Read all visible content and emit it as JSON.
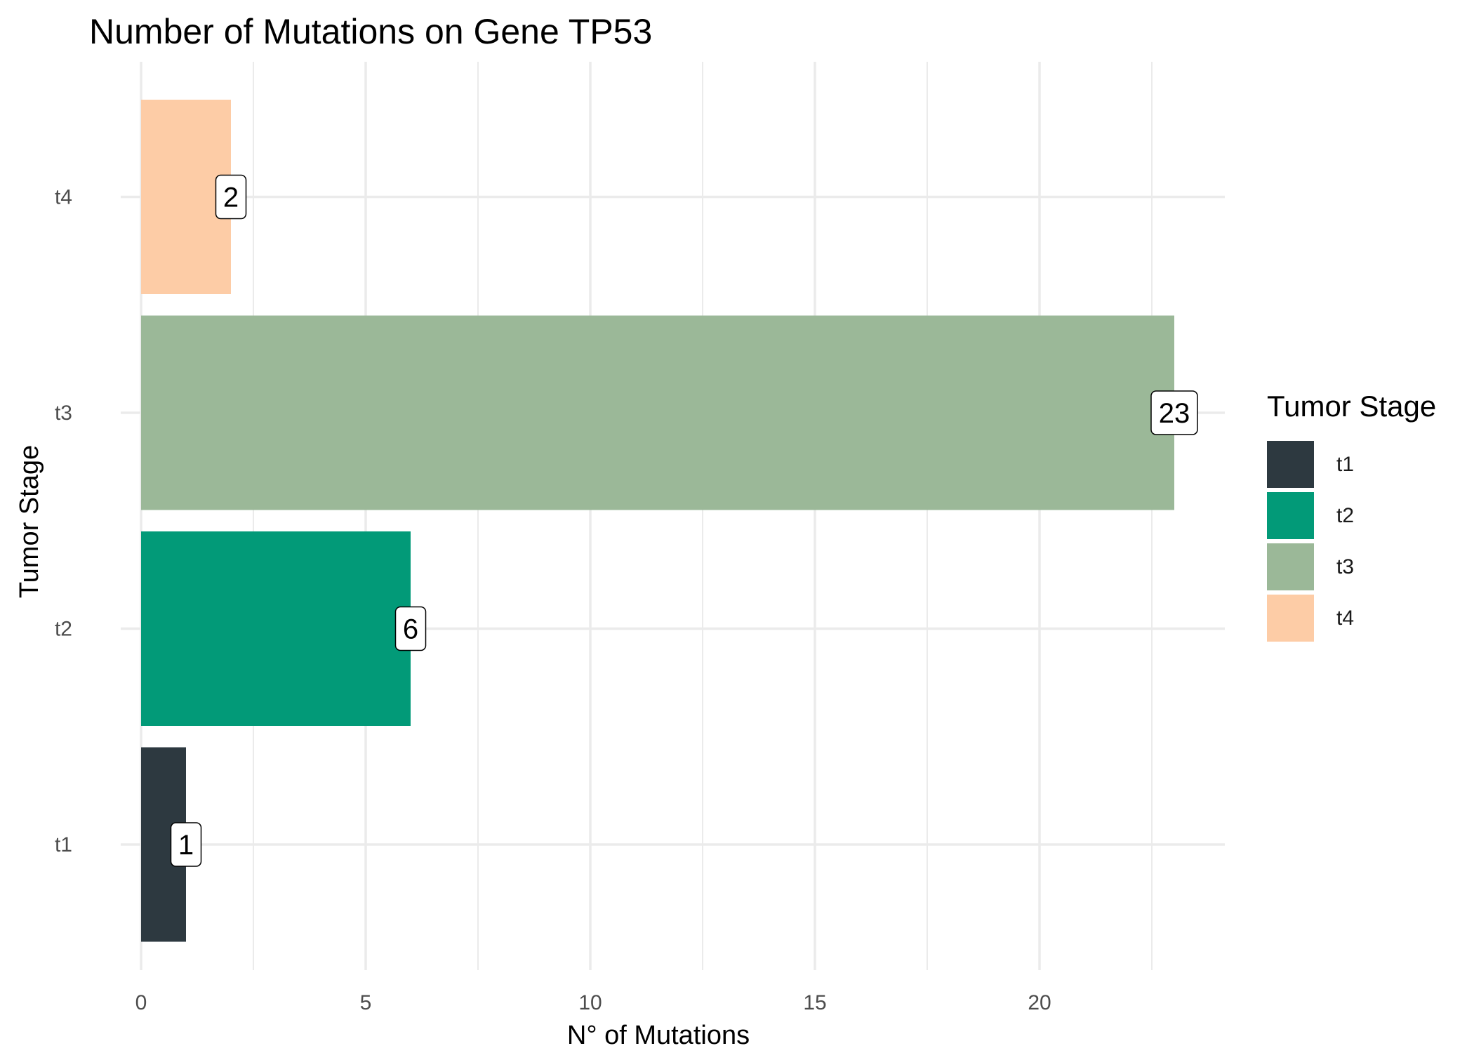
{
  "chart_data": {
    "type": "bar",
    "orientation": "horizontal",
    "title": "Number of Mutations on Gene TP53",
    "xlabel": "N° of Mutations",
    "ylabel": "Tumor Stage",
    "categories": [
      "t1",
      "t2",
      "t3",
      "t4"
    ],
    "values": [
      1,
      6,
      23,
      2
    ],
    "data_labels": [
      "1",
      "6",
      "23",
      "2"
    ],
    "colors": [
      "#2d3940",
      "#029a78",
      "#9bb898",
      "#fdcca6"
    ],
    "xlim": [
      0,
      24.15
    ],
    "x_ticks": [
      0,
      5,
      10,
      15,
      20
    ],
    "x_tick_labels": [
      "0",
      "5",
      "10",
      "15",
      "20"
    ],
    "grid": true,
    "legend": {
      "title": "Tumor Stage",
      "position": "right",
      "items": [
        "t1",
        "t2",
        "t3",
        "t4"
      ]
    }
  }
}
